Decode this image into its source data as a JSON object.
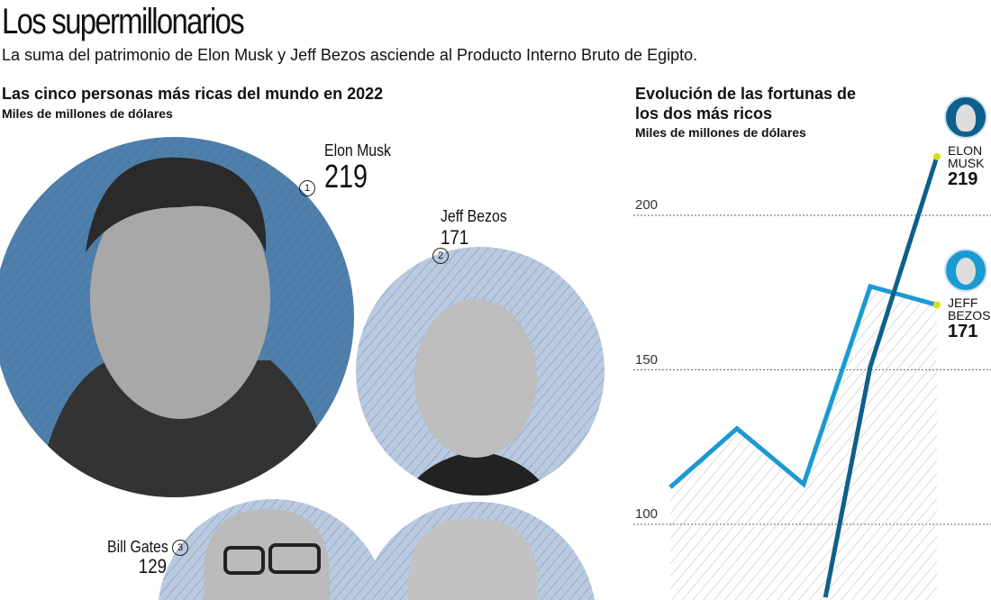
{
  "header": {
    "title": "Los supermillonarios",
    "subtitle": "La suma del patrimonio de Elon Musk y Jeff Bezos asciende al Producto Interno Bruto de Egipto."
  },
  "left": {
    "title": "Las cinco personas más ricas del mundo en 2022",
    "unit": "Miles de millones de dólares",
    "people": [
      {
        "rank": "1",
        "name": "Elon Musk",
        "value": "219"
      },
      {
        "rank": "2",
        "name": "Jeff Bezos",
        "value": "171"
      },
      {
        "rank": "3",
        "name": "Bill Gates",
        "value": "129"
      }
    ]
  },
  "colors": {
    "musk": "#0e5f8c",
    "bezos": "#1a9ad1",
    "circle_dark": "#4f7fab",
    "circle_light": "#b9c9e0",
    "marker": "#d4e21a"
  },
  "chart_data": {
    "type": "line",
    "title": "Evolución de las fortunas de los dos más ricos",
    "subtitle": "Miles de millones de dólares",
    "y_ticks": [
      "100",
      "150",
      "200"
    ],
    "ylim": [
      75,
      230
    ],
    "grid": "horizontal-dotted",
    "series": [
      {
        "name": "Jeff Bezos",
        "label_line1": "JEFF",
        "label_line2": "BEZOS",
        "end_label": "171",
        "values": [
          112,
          131,
          113,
          177,
          171
        ]
      },
      {
        "name": "Elon Musk",
        "label_line1": "ELON",
        "label_line2": "MUSK",
        "end_label": "219",
        "values": [
          null,
          null,
          40,
          151,
          219
        ]
      }
    ]
  }
}
